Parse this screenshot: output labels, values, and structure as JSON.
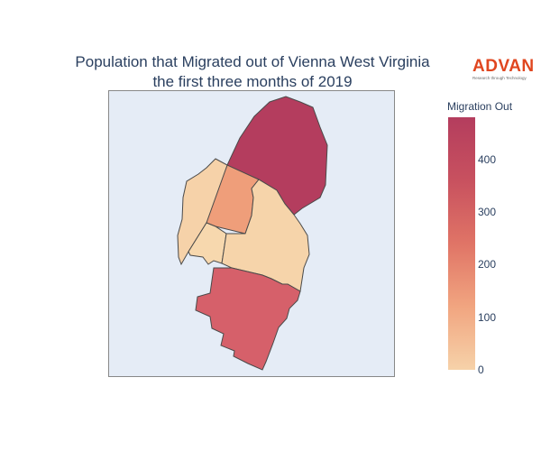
{
  "title_lines": [
    "Population that Migrated out of Vienna West Virginia",
    "the first three months of 2019"
  ],
  "logo": {
    "word": "ADVAN",
    "tagline": "Research through Technology"
  },
  "colorbar": {
    "title": "Migration Out",
    "min": 0,
    "max": 480,
    "ticks": [
      {
        "label": "400",
        "value": 400
      },
      {
        "label": "300",
        "value": 300
      },
      {
        "label": "200",
        "value": 200
      },
      {
        "label": "100",
        "value": 100
      },
      {
        "label": "0",
        "value": 0
      }
    ],
    "colors": [
      "#f6d2a9",
      "#f1a580",
      "#e07466",
      "#c8515f",
      "#b43d5e"
    ]
  },
  "chart_data": {
    "type": "choropleth",
    "color_scale_label": "Migration Out",
    "range": [
      0,
      480
    ],
    "regions": [
      {
        "value": 480,
        "color": "#b43d5e"
      },
      {
        "value": 330,
        "color": "#d6606a"
      },
      {
        "value": 180,
        "color": "#ef9e7a"
      },
      {
        "value": 40,
        "color": "#f6d2a9"
      },
      {
        "value": 30,
        "color": "#f6d4aa"
      },
      {
        "value": 20,
        "color": "#f7d8ae"
      }
    ]
  }
}
